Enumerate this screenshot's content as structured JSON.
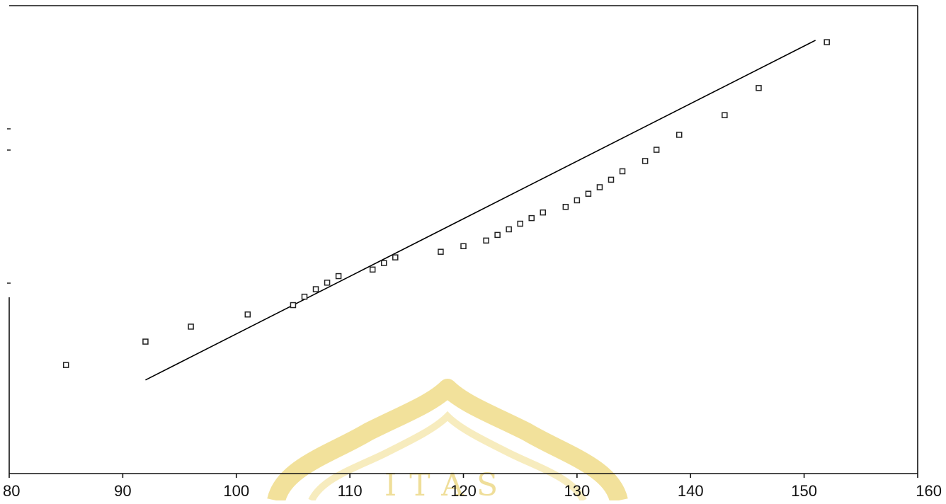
{
  "chart_data": {
    "type": "scatter",
    "title": "",
    "xlabel": "",
    "ylabel": "",
    "xlim": [
      80,
      160
    ],
    "ylim": [
      -1.9,
      3.1
    ],
    "grid": false,
    "legend": "none",
    "x_ticks": [
      80,
      90,
      100,
      110,
      120,
      130,
      140,
      150,
      160
    ],
    "x_tick_labels": [
      "80",
      "90",
      "100",
      "110",
      "120",
      "130",
      "140",
      "150",
      "160"
    ],
    "series": [
      {
        "marker": "open-square",
        "points": [
          {
            "x": 85,
            "y": -0.74
          },
          {
            "x": 92,
            "y": -0.49
          },
          {
            "x": 96,
            "y": -0.33
          },
          {
            "x": 101,
            "y": -0.2
          },
          {
            "x": 105,
            "y": -0.1
          },
          {
            "x": 106,
            "y": -0.01
          },
          {
            "x": 107,
            "y": 0.07
          },
          {
            "x": 108,
            "y": 0.14
          },
          {
            "x": 109,
            "y": 0.21
          },
          {
            "x": 112,
            "y": 0.28
          },
          {
            "x": 113,
            "y": 0.35
          },
          {
            "x": 114,
            "y": 0.41
          },
          {
            "x": 118,
            "y": 0.47
          },
          {
            "x": 120,
            "y": 0.53
          },
          {
            "x": 122,
            "y": 0.59
          },
          {
            "x": 123,
            "y": 0.65
          },
          {
            "x": 124,
            "y": 0.71
          },
          {
            "x": 125,
            "y": 0.77
          },
          {
            "x": 126,
            "y": 0.83
          },
          {
            "x": 127,
            "y": 0.89
          },
          {
            "x": 129,
            "y": 0.95
          },
          {
            "x": 130,
            "y": 1.02
          },
          {
            "x": 131,
            "y": 1.09
          },
          {
            "x": 132,
            "y": 1.16
          },
          {
            "x": 133,
            "y": 1.24
          },
          {
            "x": 134,
            "y": 1.33
          },
          {
            "x": 136,
            "y": 1.44
          },
          {
            "x": 137,
            "y": 1.56
          },
          {
            "x": 139,
            "y": 1.72
          },
          {
            "x": 143,
            "y": 1.93
          },
          {
            "x": 146,
            "y": 2.22
          },
          {
            "x": 152,
            "y": 2.71
          }
        ]
      }
    ],
    "fit_line": {
      "x": [
        92,
        151
      ],
      "y": [
        -0.9,
        2.73
      ]
    }
  },
  "colors": {
    "axis": "#111111",
    "marker": "#222222",
    "line": "#000000",
    "watermark": "#e8c94a"
  },
  "watermark": {
    "text": "ITAS"
  }
}
